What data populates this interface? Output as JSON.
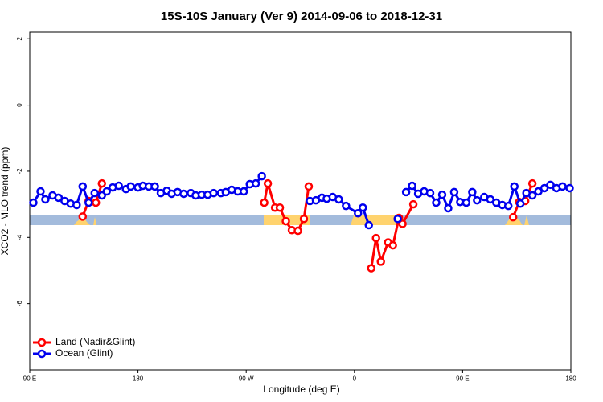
{
  "chart_data": {
    "type": "line",
    "title": "15S-10S January (Ver 9)   2014-09-06 to 2018-12-31",
    "x_label": "Longitude (deg E)",
    "y_label": "XCO2 - MLO trend (ppm)",
    "xlim": [
      90,
      540
    ],
    "xticks": [
      {
        "value": 90,
        "label": "90 E"
      },
      {
        "value": 180,
        "label": "180"
      },
      {
        "value": 270,
        "label": "90 W"
      },
      {
        "value": 360,
        "label": "0"
      },
      {
        "value": 450,
        "label": "90 E"
      },
      {
        "value": 540,
        "label": "180"
      }
    ],
    "ylim": [
      -8,
      2.2
    ],
    "yticks": [
      2,
      0,
      -2,
      -4,
      -6
    ],
    "legend": "bottom-left",
    "series": [
      {
        "name": "Land (Nadir&Glint)",
        "color": "#ff0000",
        "x": [
          134,
          139,
          145,
          150,
          null,
          285,
          288,
          294,
          298,
          303,
          308,
          313,
          318,
          322,
          null,
          374,
          378,
          382,
          388,
          392,
          397,
          400,
          409,
          null,
          492,
          497,
          502,
          508
        ],
        "values": [
          -3.37,
          -2.9,
          -2.95,
          -2.37,
          null,
          -2.95,
          -2.37,
          -3.1,
          -3.1,
          -3.51,
          -3.78,
          -3.8,
          -3.44,
          -2.46,
          null,
          -4.93,
          -4.02,
          -4.73,
          -4.15,
          -4.24,
          -3.41,
          -3.59,
          -3.0,
          null,
          -3.39,
          -2.93,
          -2.9,
          -2.37
        ]
      },
      {
        "name": "Ocean (Glint)",
        "color": "#0000ee",
        "x": [
          93,
          99,
          103,
          109,
          114,
          119,
          124,
          129,
          134,
          139,
          144,
          150,
          154,
          159,
          164,
          170,
          174,
          180,
          184,
          189,
          194,
          199,
          204,
          208,
          213,
          218,
          224,
          228,
          233,
          238,
          243,
          249,
          253,
          258,
          263,
          268,
          273,
          278,
          283,
          null,
          323,
          328,
          333,
          337,
          342,
          347,
          353,
          363,
          367,
          372,
          null,
          396,
          null,
          403,
          408,
          413,
          418,
          423,
          428,
          433,
          438,
          443,
          448,
          453,
          458,
          462,
          468,
          473,
          478,
          483,
          488,
          493,
          498,
          503,
          508,
          513,
          518,
          523,
          528,
          533,
          539
        ],
        "values": [
          -2.95,
          -2.61,
          -2.85,
          -2.73,
          -2.8,
          -2.9,
          -2.98,
          -3.02,
          -2.46,
          -2.95,
          -2.66,
          -2.73,
          -2.61,
          -2.49,
          -2.44,
          -2.54,
          -2.46,
          -2.49,
          -2.44,
          -2.46,
          -2.46,
          -2.66,
          -2.59,
          -2.68,
          -2.63,
          -2.68,
          -2.66,
          -2.73,
          -2.71,
          -2.71,
          -2.66,
          -2.66,
          -2.63,
          -2.56,
          -2.61,
          -2.61,
          -2.39,
          -2.37,
          -2.15,
          null,
          -2.9,
          -2.88,
          -2.8,
          -2.83,
          -2.78,
          -2.85,
          -3.05,
          -3.27,
          -3.1,
          -3.63,
          null,
          -3.44,
          null,
          -2.63,
          -2.44,
          -2.68,
          -2.61,
          -2.66,
          -2.95,
          -2.71,
          -3.12,
          -2.63,
          -2.93,
          -2.95,
          -2.63,
          -2.88,
          -2.78,
          -2.85,
          -2.95,
          -3.02,
          -3.05,
          -2.46,
          -2.98,
          -2.66,
          -2.73,
          -2.61,
          -2.51,
          -2.41,
          -2.51,
          -2.46,
          -2.51
        ]
      }
    ]
  }
}
